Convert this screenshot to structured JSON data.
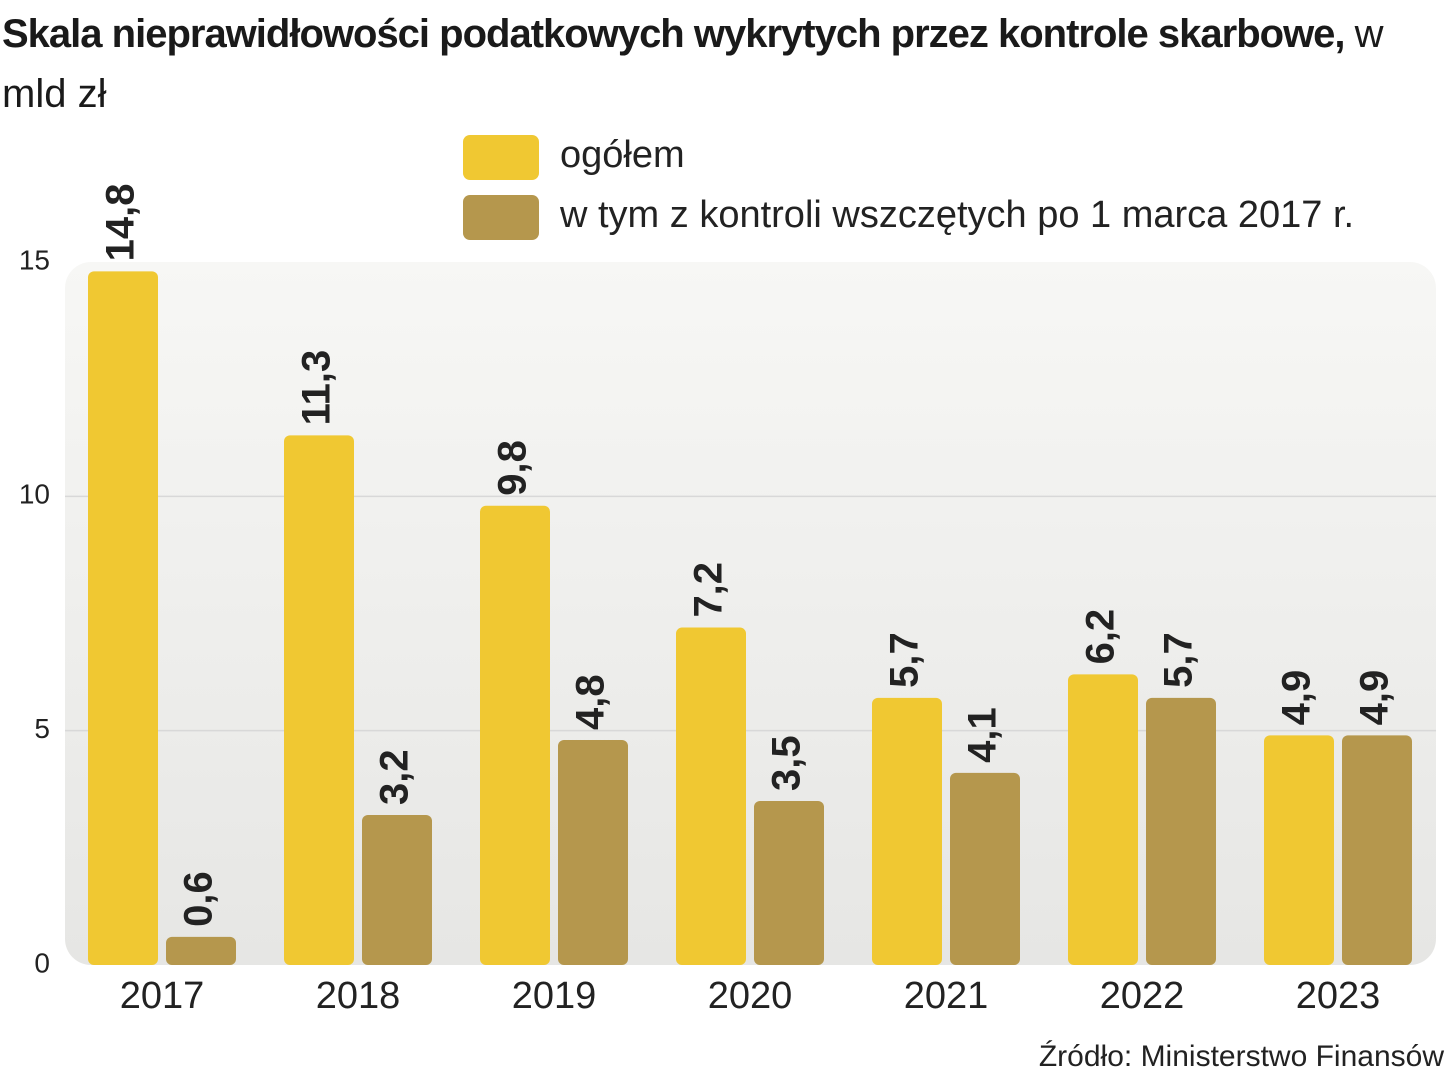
{
  "chart_data": {
    "type": "bar",
    "title": "Skala nieprawidłowości podatkowych wykrytych przez kontrole skarbowe,",
    "subtitle": "w mld zł",
    "source": "Źródło: Ministerstwo Finansów",
    "categories": [
      "2017",
      "2018",
      "2019",
      "2020",
      "2021",
      "2022",
      "2023"
    ],
    "series": [
      {
        "name": "ogółem",
        "color": "#f0c832",
        "values": [
          14.8,
          11.3,
          9.8,
          7.2,
          5.7,
          6.2,
          4.9
        ],
        "value_labels": [
          "14,8",
          "11,3",
          "9,8",
          "7,2",
          "5,7",
          "6,2",
          "4,9"
        ]
      },
      {
        "name": "w tym z kontroli wszczętych po 1 marca 2017 r.",
        "color": "#b5974d",
        "values": [
          0.6,
          3.2,
          4.8,
          3.5,
          4.1,
          5.7,
          4.9
        ],
        "value_labels": [
          "0,6",
          "3,2",
          "4,8",
          "3,5",
          "4,1",
          "5,7",
          "4,9"
        ]
      }
    ],
    "ylim": [
      0,
      15
    ],
    "yticks": [
      0,
      5,
      10,
      15
    ],
    "grid": true
  }
}
